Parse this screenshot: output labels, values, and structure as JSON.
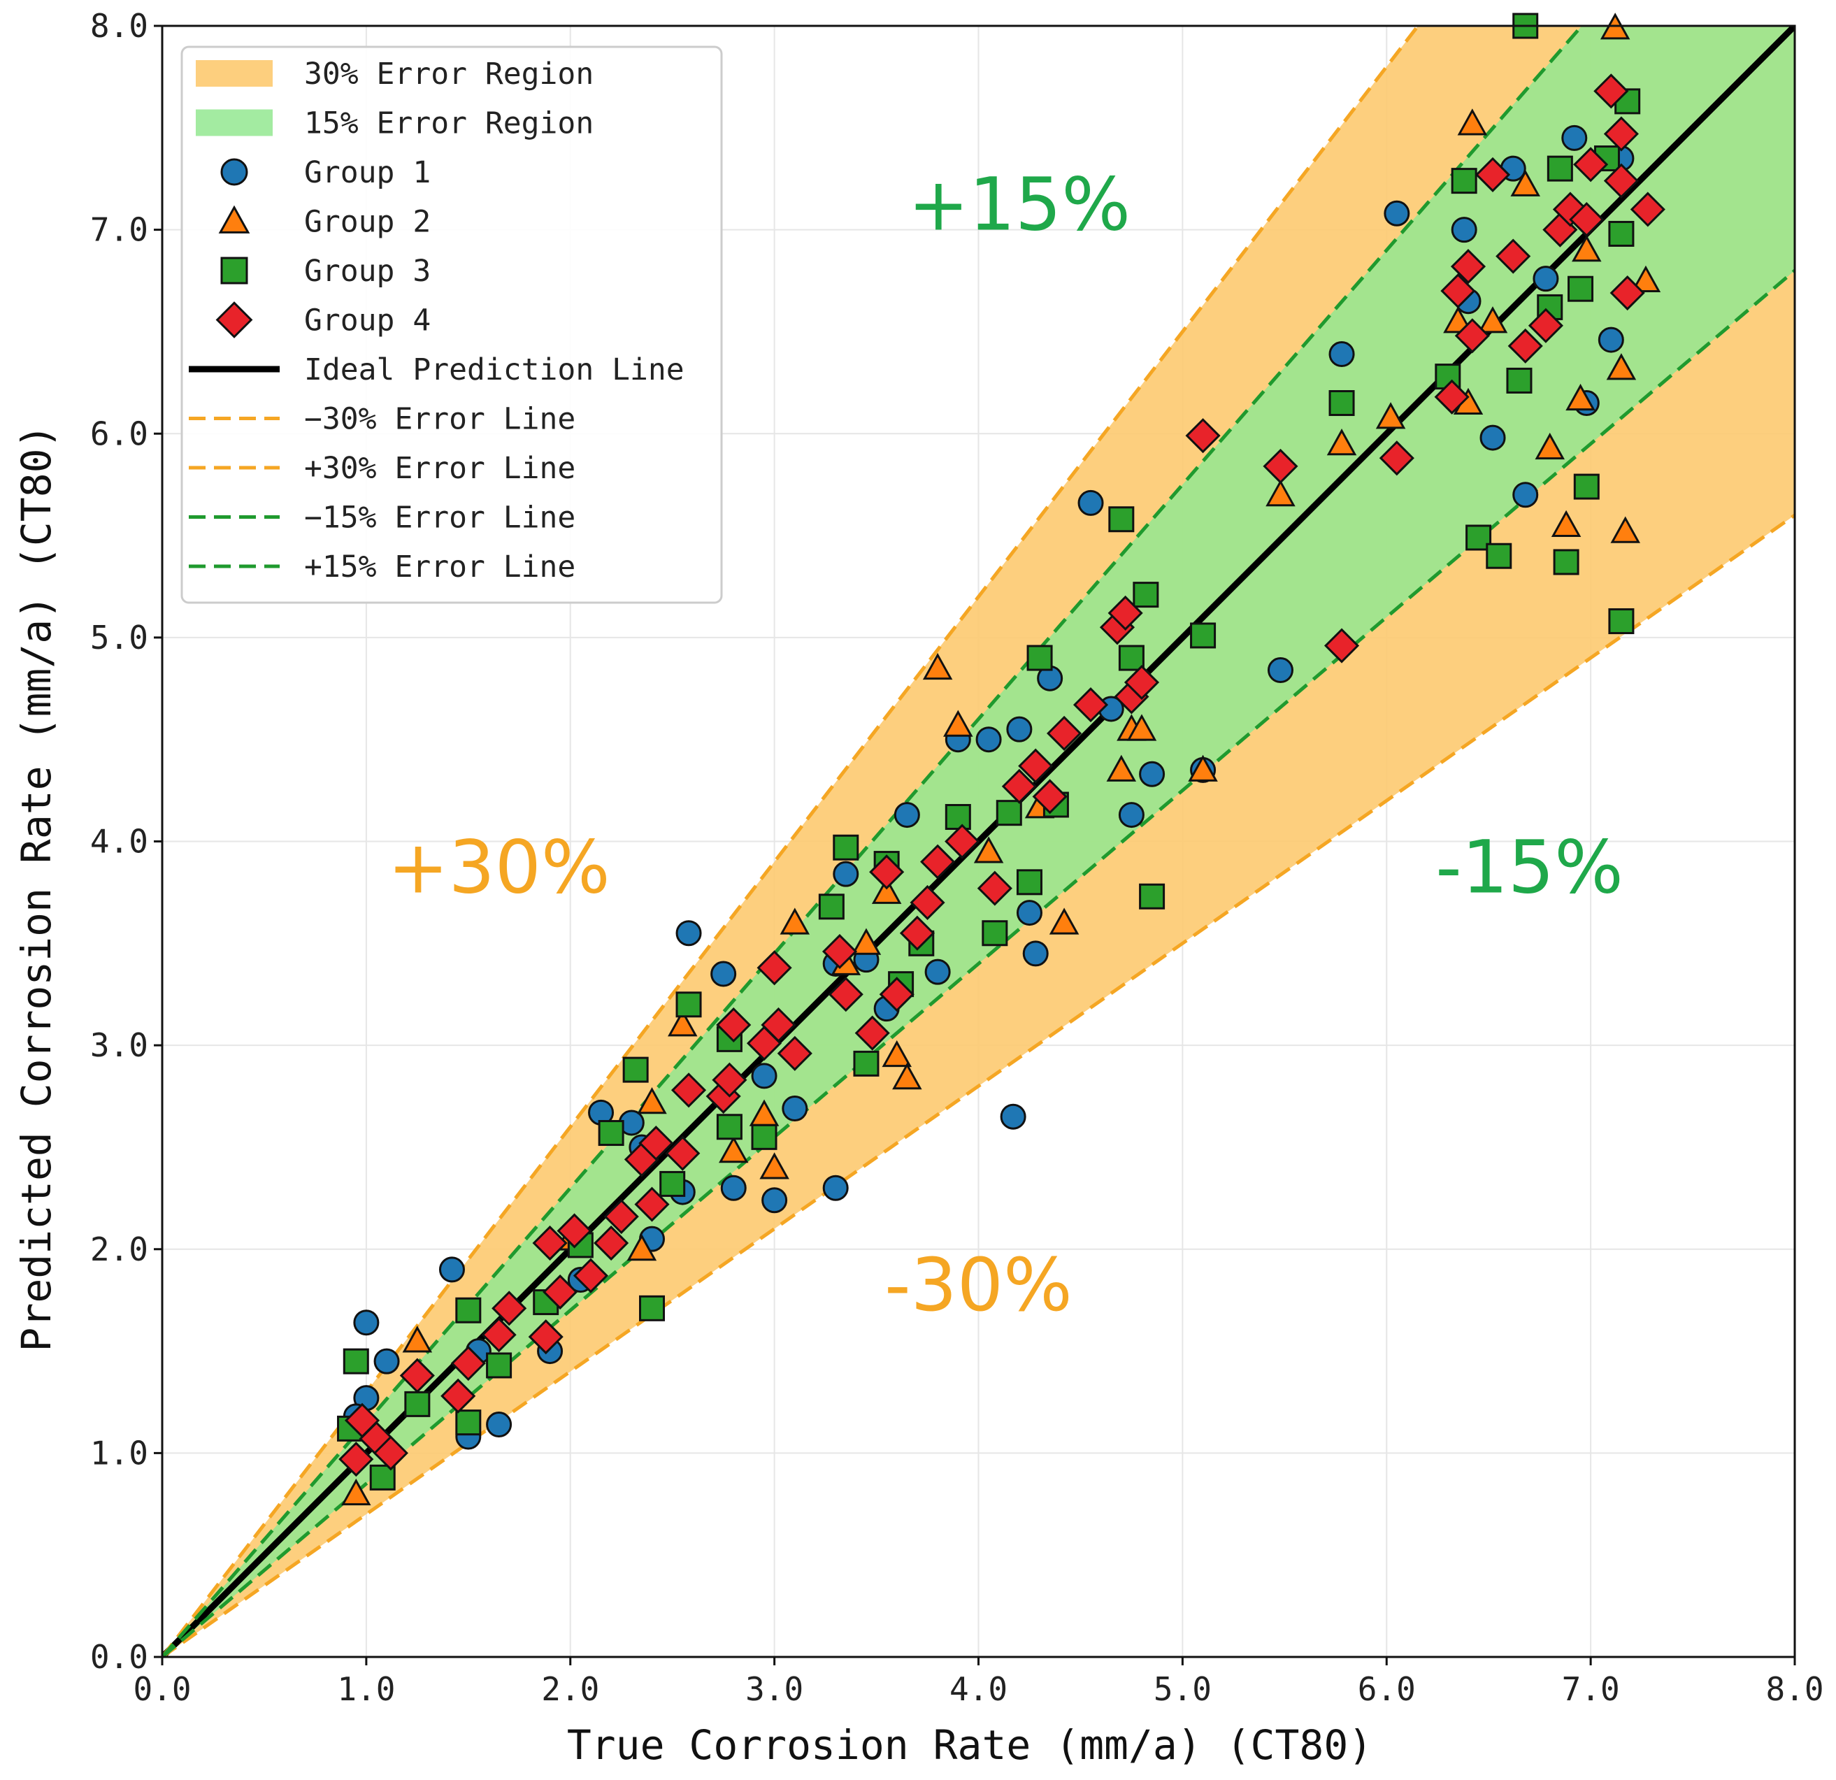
{
  "chart_data": {
    "type": "scatter",
    "title": "",
    "xlabel": "True Corrosion Rate (mm/a) (CT80)",
    "ylabel": "Predicted Corrosion Rate (mm/a) (CT80)",
    "xlim": [
      0.0,
      8.0
    ],
    "ylim": [
      0.0,
      8.0
    ],
    "xticks": [
      "0.0",
      "1.0",
      "2.0",
      "3.0",
      "4.0",
      "5.0",
      "6.0",
      "7.0",
      "8.0"
    ],
    "yticks": [
      "0.0",
      "1.0",
      "2.0",
      "3.0",
      "4.0",
      "5.0",
      "6.0",
      "7.0",
      "8.0"
    ],
    "grid": true,
    "legend_position": "upper-left",
    "regions": [
      {
        "name": "30% Error Region",
        "lower_factor": 0.7,
        "upper_factor": 1.3,
        "color": "#fdca70"
      },
      {
        "name": "15% Error Region",
        "lower_factor": 0.85,
        "upper_factor": 1.15,
        "color": "#93e890"
      }
    ],
    "lines": [
      {
        "name": "Ideal Prediction Line",
        "factor": 1.0,
        "color": "#000000",
        "style": "solid"
      },
      {
        "name": "−30% Error Line",
        "factor": 0.7,
        "color": "#f5a623",
        "style": "dashed"
      },
      {
        "name": "+30% Error Line",
        "factor": 1.3,
        "color": "#f5a623",
        "style": "dashed"
      },
      {
        "name": "−15% Error Line",
        "factor": 0.85,
        "color": "#1f9a2e",
        "style": "dashed"
      },
      {
        "name": "+15% Error Line",
        "factor": 1.15,
        "color": "#1f9a2e",
        "style": "dashed"
      }
    ],
    "annotations": [
      {
        "text": "+15%",
        "x": 4.2,
        "y": 7.0,
        "color": "#1fa84a"
      },
      {
        "text": "+30%",
        "x": 1.65,
        "y": 3.75,
        "color": "#f5a623"
      },
      {
        "text": "-15%",
        "x": 6.7,
        "y": 3.75,
        "color": "#1fa84a"
      },
      {
        "text": "-30%",
        "x": 4.0,
        "y": 1.7,
        "color": "#f5a623"
      }
    ],
    "series": [
      {
        "name": "Group 1",
        "marker": "circle",
        "color": "#1f77b4",
        "points": [
          [
            1.0,
            1.64
          ],
          [
            1.0,
            1.27
          ],
          [
            1.1,
            1.45
          ],
          [
            1.42,
            1.9
          ],
          [
            1.5,
            1.08
          ],
          [
            1.65,
            1.14
          ],
          [
            1.55,
            1.5
          ],
          [
            0.95,
            1.18
          ],
          [
            1.9,
            1.5
          ],
          [
            2.05,
            1.85
          ],
          [
            2.15,
            2.67
          ],
          [
            2.3,
            2.62
          ],
          [
            2.4,
            2.05
          ],
          [
            2.55,
            2.28
          ],
          [
            2.58,
            3.55
          ],
          [
            2.75,
            3.35
          ],
          [
            2.8,
            2.3
          ],
          [
            2.95,
            2.85
          ],
          [
            3.0,
            2.24
          ],
          [
            3.1,
            2.69
          ],
          [
            3.3,
            2.3
          ],
          [
            3.3,
            3.4
          ],
          [
            3.35,
            3.84
          ],
          [
            3.55,
            3.18
          ],
          [
            3.65,
            4.13
          ],
          [
            3.8,
            3.36
          ],
          [
            3.9,
            4.5
          ],
          [
            4.05,
            4.5
          ],
          [
            4.2,
            4.55
          ],
          [
            4.25,
            3.65
          ],
          [
            4.28,
            3.45
          ],
          [
            4.35,
            4.8
          ],
          [
            4.55,
            5.66
          ],
          [
            4.65,
            4.65
          ],
          [
            4.75,
            4.13
          ],
          [
            4.85,
            4.33
          ],
          [
            5.1,
            4.35
          ],
          [
            5.48,
            4.84
          ],
          [
            5.78,
            6.39
          ],
          [
            6.05,
            7.08
          ],
          [
            6.38,
            7.0
          ],
          [
            6.4,
            6.65
          ],
          [
            6.52,
            5.98
          ],
          [
            6.62,
            7.3
          ],
          [
            6.68,
            5.7
          ],
          [
            6.78,
            6.76
          ],
          [
            6.92,
            7.45
          ],
          [
            6.98,
            6.15
          ],
          [
            7.1,
            6.46
          ],
          [
            7.15,
            7.35
          ],
          [
            4.17,
            2.65
          ],
          [
            3.45,
            3.42
          ],
          [
            2.35,
            2.5
          ]
        ]
      },
      {
        "name": "Group 2",
        "marker": "triangle",
        "color": "#ff7f0e",
        "points": [
          [
            0.95,
            0.8
          ],
          [
            1.25,
            1.55
          ],
          [
            2.0,
            2.05
          ],
          [
            2.35,
            2.0
          ],
          [
            2.4,
            2.72
          ],
          [
            2.55,
            3.1
          ],
          [
            2.8,
            2.48
          ],
          [
            2.95,
            2.66
          ],
          [
            3.0,
            2.4
          ],
          [
            3.1,
            3.6
          ],
          [
            3.35,
            3.4
          ],
          [
            3.45,
            3.5
          ],
          [
            3.55,
            3.75
          ],
          [
            3.6,
            2.95
          ],
          [
            3.65,
            2.84
          ],
          [
            3.8,
            4.85
          ],
          [
            3.9,
            4.57
          ],
          [
            4.05,
            3.95
          ],
          [
            4.3,
            4.17
          ],
          [
            4.42,
            3.6
          ],
          [
            4.7,
            4.35
          ],
          [
            4.75,
            4.55
          ],
          [
            4.8,
            4.55
          ],
          [
            5.1,
            4.35
          ],
          [
            5.48,
            5.7
          ],
          [
            5.78,
            5.95
          ],
          [
            6.02,
            6.08
          ],
          [
            6.35,
            6.55
          ],
          [
            6.4,
            6.15
          ],
          [
            6.42,
            7.52
          ],
          [
            6.52,
            6.55
          ],
          [
            6.68,
            7.22
          ],
          [
            6.8,
            5.93
          ],
          [
            6.88,
            5.55
          ],
          [
            6.95,
            6.17
          ],
          [
            6.98,
            6.9
          ],
          [
            7.12,
            7.99
          ],
          [
            7.15,
            6.32
          ],
          [
            7.17,
            5.52
          ],
          [
            7.27,
            6.75
          ]
        ]
      },
      {
        "name": "Group 3",
        "marker": "square",
        "color": "#2ca02c",
        "points": [
          [
            0.95,
            1.45
          ],
          [
            0.92,
            1.12
          ],
          [
            1.08,
            0.88
          ],
          [
            1.25,
            1.24
          ],
          [
            1.5,
            1.7
          ],
          [
            1.5,
            1.15
          ],
          [
            1.65,
            1.43
          ],
          [
            1.88,
            1.74
          ],
          [
            2.05,
            2.02
          ],
          [
            2.2,
            2.57
          ],
          [
            2.32,
            2.88
          ],
          [
            2.4,
            1.71
          ],
          [
            2.5,
            2.32
          ],
          [
            2.58,
            3.2
          ],
          [
            2.78,
            2.6
          ],
          [
            2.78,
            3.03
          ],
          [
            2.95,
            2.55
          ],
          [
            3.28,
            3.68
          ],
          [
            3.35,
            3.97
          ],
          [
            3.45,
            2.91
          ],
          [
            3.55,
            3.89
          ],
          [
            3.62,
            3.3
          ],
          [
            3.72,
            3.5
          ],
          [
            3.9,
            4.12
          ],
          [
            4.08,
            3.55
          ],
          [
            4.15,
            4.14
          ],
          [
            4.25,
            3.8
          ],
          [
            4.3,
            4.9
          ],
          [
            4.38,
            4.18
          ],
          [
            4.7,
            5.58
          ],
          [
            4.75,
            4.9
          ],
          [
            4.85,
            3.73
          ],
          [
            4.82,
            5.21
          ],
          [
            5.1,
            5.01
          ],
          [
            5.78,
            6.15
          ],
          [
            6.3,
            6.28
          ],
          [
            6.38,
            7.24
          ],
          [
            6.45,
            5.49
          ],
          [
            6.55,
            5.4
          ],
          [
            6.65,
            6.26
          ],
          [
            6.8,
            6.62
          ],
          [
            6.85,
            7.3
          ],
          [
            6.88,
            5.37
          ],
          [
            6.95,
            6.71
          ],
          [
            6.98,
            5.74
          ],
          [
            7.08,
            7.35
          ],
          [
            7.15,
            6.98
          ],
          [
            7.18,
            7.63
          ],
          [
            7.15,
            5.08
          ],
          [
            6.68,
            8.0
          ]
        ]
      },
      {
        "name": "Group 4",
        "marker": "diamond",
        "color": "#e8232a",
        "points": [
          [
            0.95,
            0.97
          ],
          [
            0.98,
            1.16
          ],
          [
            1.05,
            1.07
          ],
          [
            1.12,
            1.0
          ],
          [
            1.25,
            1.38
          ],
          [
            1.45,
            1.28
          ],
          [
            1.5,
            1.44
          ],
          [
            1.65,
            1.58
          ],
          [
            1.7,
            1.71
          ],
          [
            1.88,
            1.57
          ],
          [
            1.9,
            2.03
          ],
          [
            1.95,
            1.79
          ],
          [
            2.02,
            2.09
          ],
          [
            2.1,
            1.87
          ],
          [
            2.2,
            2.03
          ],
          [
            2.25,
            2.16
          ],
          [
            2.35,
            2.44
          ],
          [
            2.4,
            2.22
          ],
          [
            2.42,
            2.52
          ],
          [
            2.55,
            2.47
          ],
          [
            2.58,
            2.78
          ],
          [
            2.75,
            2.75
          ],
          [
            2.78,
            2.83
          ],
          [
            2.8,
            3.1
          ],
          [
            2.95,
            3.01
          ],
          [
            3.0,
            3.38
          ],
          [
            3.02,
            3.1
          ],
          [
            3.1,
            2.96
          ],
          [
            3.32,
            3.46
          ],
          [
            3.35,
            3.25
          ],
          [
            3.48,
            3.06
          ],
          [
            3.55,
            3.85
          ],
          [
            3.6,
            3.25
          ],
          [
            3.7,
            3.55
          ],
          [
            3.75,
            3.7
          ],
          [
            3.8,
            3.9
          ],
          [
            3.92,
            4.0
          ],
          [
            4.08,
            3.77
          ],
          [
            4.2,
            4.27
          ],
          [
            4.28,
            4.37
          ],
          [
            4.35,
            4.22
          ],
          [
            4.42,
            4.53
          ],
          [
            4.55,
            4.67
          ],
          [
            4.68,
            5.05
          ],
          [
            4.72,
            5.12
          ],
          [
            4.75,
            4.71
          ],
          [
            4.8,
            4.78
          ],
          [
            5.1,
            5.99
          ],
          [
            5.48,
            5.84
          ],
          [
            5.78,
            4.96
          ],
          [
            6.05,
            5.88
          ],
          [
            6.32,
            6.18
          ],
          [
            6.35,
            6.7
          ],
          [
            6.4,
            6.82
          ],
          [
            6.42,
            6.48
          ],
          [
            6.52,
            7.27
          ],
          [
            6.62,
            6.87
          ],
          [
            6.68,
            6.43
          ],
          [
            6.78,
            6.53
          ],
          [
            6.85,
            7.0
          ],
          [
            6.9,
            7.1
          ],
          [
            6.98,
            7.05
          ],
          [
            7.0,
            7.32
          ],
          [
            7.1,
            7.68
          ],
          [
            7.15,
            7.47
          ],
          [
            7.15,
            7.24
          ],
          [
            7.18,
            6.69
          ],
          [
            7.28,
            7.1
          ]
        ]
      }
    ]
  }
}
